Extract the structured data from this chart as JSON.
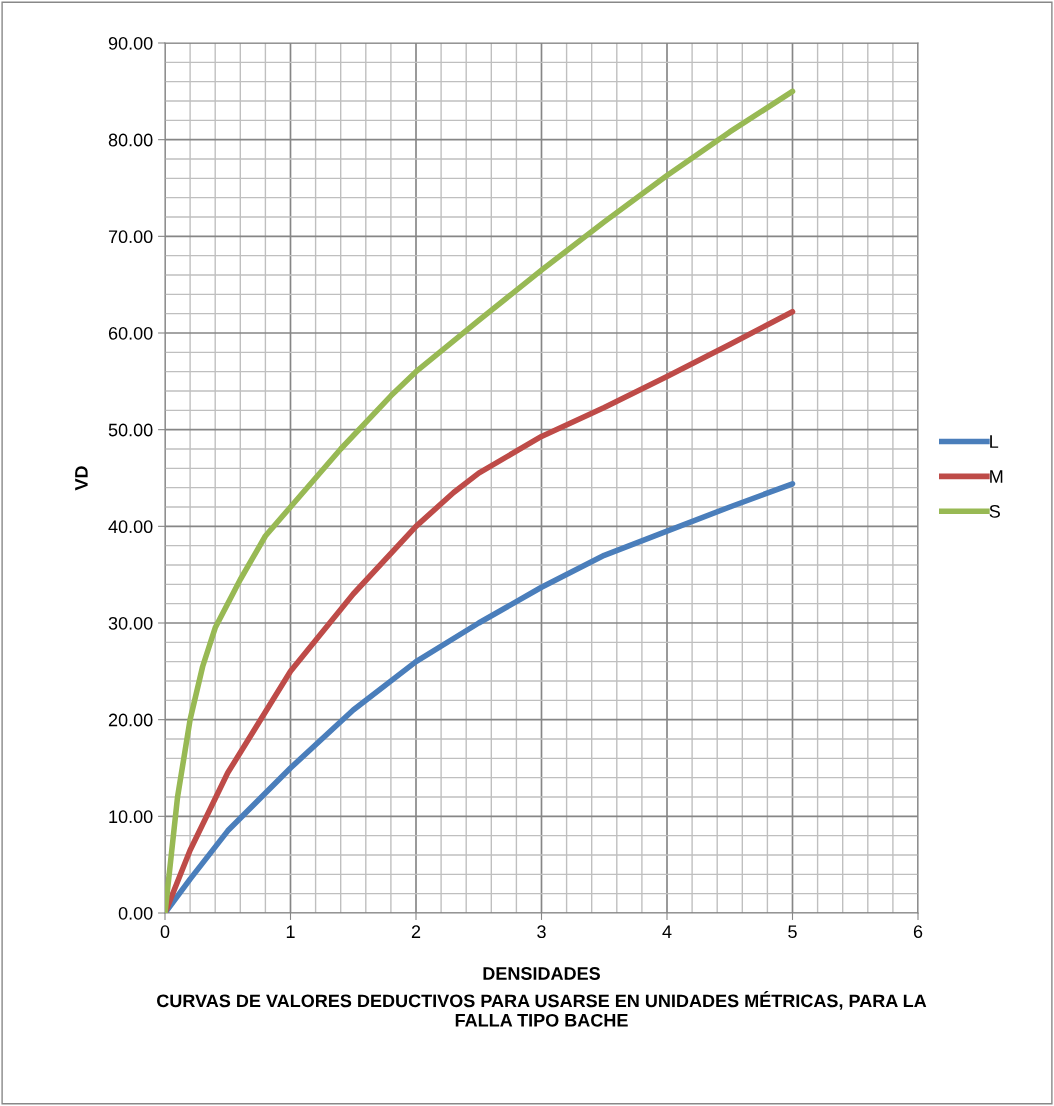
{
  "chart_data": {
    "type": "line",
    "xlabel": "DENSIDADES",
    "ylabel": "VD",
    "annotations": [
      "CURVAS DE VALORES DEDUCTIVOS PARA USARSE EN UNIDADES MÉTRICAS, PARA LA FALLA TIPO BACHE"
    ],
    "xlim": [
      0,
      6
    ],
    "xticks": [
      0,
      1,
      2,
      3,
      4,
      5,
      6
    ],
    "ylim": [
      0,
      90
    ],
    "yticks": [
      {
        "value": 0,
        "label": "0.00"
      },
      {
        "value": 10,
        "label": "10.00"
      },
      {
        "value": 20,
        "label": "20.00"
      },
      {
        "value": 30,
        "label": "30.00"
      },
      {
        "value": 40,
        "label": "40.00"
      },
      {
        "value": 50,
        "label": "50.00"
      },
      {
        "value": 60,
        "label": "60.00"
      },
      {
        "value": 70,
        "label": "70.00"
      },
      {
        "value": 80,
        "label": "80.00"
      },
      {
        "value": 90,
        "label": "90.00"
      }
    ],
    "grid": true,
    "legend": "right",
    "marker": "none",
    "line_style": "solid",
    "series": [
      {
        "name": "L",
        "color": "#4a7ebb",
        "x": [
          0,
          0.2,
          0.5,
          1,
          1.5,
          2,
          2.5,
          3,
          3.5,
          4,
          4.5,
          5
        ],
        "values": [
          0,
          3.5,
          8.5,
          15,
          21,
          26,
          30,
          33.7,
          37,
          39.5,
          42,
          44.4
        ]
      },
      {
        "name": "M",
        "color": "#be4b48",
        "x": [
          0,
          0.2,
          0.5,
          1,
          1.5,
          2,
          2.3,
          2.5,
          3,
          3.5,
          4,
          4.5,
          5
        ],
        "values": [
          0,
          6.5,
          14.5,
          25,
          33,
          40,
          43.5,
          45.5,
          49.3,
          52.3,
          55.5,
          58.8,
          62.2
        ]
      },
      {
        "name": "S",
        "color": "#98b954",
        "x": [
          0,
          0.1,
          0.2,
          0.3,
          0.4,
          0.6,
          0.8,
          1,
          1.4,
          1.8,
          2,
          2.5,
          3,
          3.5,
          4,
          4.5,
          5
        ],
        "values": [
          0,
          12,
          20,
          25.5,
          29.5,
          34.5,
          39,
          42,
          48,
          53.5,
          56,
          61.3,
          66.5,
          71.5,
          76.3,
          80.8,
          85
        ]
      }
    ]
  }
}
